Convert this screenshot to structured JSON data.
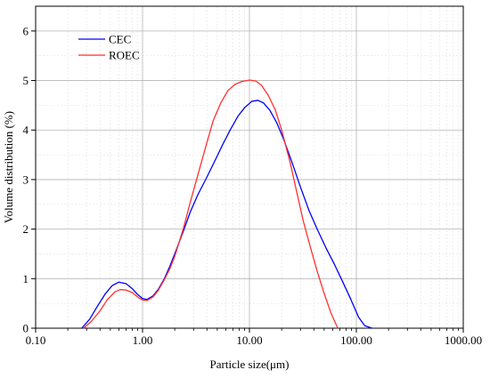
{
  "chart_data": {
    "type": "line",
    "title": "",
    "xlabel": "Particle size(μm)",
    "ylabel": "Volume distribution (%)",
    "x_scale": "log",
    "xlim": [
      0.1,
      1000
    ],
    "ylim": [
      0,
      6.5
    ],
    "x_ticks": [
      0.1,
      1,
      10,
      100,
      1000
    ],
    "x_tick_labels": [
      "0.10",
      "1.00",
      "10.00",
      "100.00",
      "1000.00"
    ],
    "y_ticks": [
      0,
      1,
      2,
      3,
      4,
      5,
      6
    ],
    "y_tick_labels": [
      "0",
      "1",
      "2",
      "3",
      "4",
      "5",
      "6"
    ],
    "grid": "major and minor, dashed",
    "legend": "top-left",
    "series": [
      {
        "name": "CEC",
        "color": "#0000ff",
        "x": [
          0.27,
          0.32,
          0.38,
          0.45,
          0.52,
          0.6,
          0.7,
          0.8,
          0.9,
          1.0,
          1.1,
          1.25,
          1.4,
          1.6,
          1.8,
          2.0,
          2.4,
          2.8,
          3.3,
          4.0,
          4.8,
          5.6,
          6.6,
          7.8,
          9.0,
          10.5,
          12.0,
          13.5,
          15.5,
          18.0,
          21.0,
          25.0,
          30.0,
          36.0,
          43.0,
          52.0,
          62.0,
          74.0,
          88.0,
          105.0,
          120.0,
          140.0
        ],
        "y": [
          0.0,
          0.18,
          0.45,
          0.7,
          0.86,
          0.93,
          0.9,
          0.8,
          0.68,
          0.6,
          0.58,
          0.65,
          0.78,
          1.0,
          1.25,
          1.5,
          1.95,
          2.35,
          2.7,
          3.05,
          3.4,
          3.7,
          4.0,
          4.28,
          4.45,
          4.58,
          4.6,
          4.55,
          4.4,
          4.15,
          3.8,
          3.35,
          2.85,
          2.38,
          2.0,
          1.62,
          1.3,
          0.95,
          0.6,
          0.22,
          0.05,
          0.0
        ]
      },
      {
        "name": "ROEC",
        "color": "#ff3030",
        "x": [
          0.28,
          0.33,
          0.4,
          0.47,
          0.55,
          0.62,
          0.7,
          0.8,
          0.9,
          1.0,
          1.1,
          1.25,
          1.4,
          1.6,
          1.8,
          2.0,
          2.4,
          2.8,
          3.3,
          4.0,
          4.6,
          5.4,
          6.3,
          7.3,
          8.5,
          10.0,
          11.5,
          13.0,
          15.0,
          17.5,
          20.0,
          24.0,
          28.0,
          32.0,
          37.0,
          43.0,
          50.0,
          58.0,
          67.0
        ],
        "y": [
          0.0,
          0.13,
          0.35,
          0.58,
          0.73,
          0.78,
          0.77,
          0.72,
          0.63,
          0.57,
          0.56,
          0.63,
          0.76,
          0.98,
          1.2,
          1.45,
          2.0,
          2.55,
          3.1,
          3.75,
          4.2,
          4.55,
          4.8,
          4.92,
          4.98,
          5.01,
          4.99,
          4.9,
          4.7,
          4.4,
          4.0,
          3.35,
          2.7,
          2.15,
          1.65,
          1.15,
          0.7,
          0.3,
          0.0
        ]
      }
    ]
  }
}
